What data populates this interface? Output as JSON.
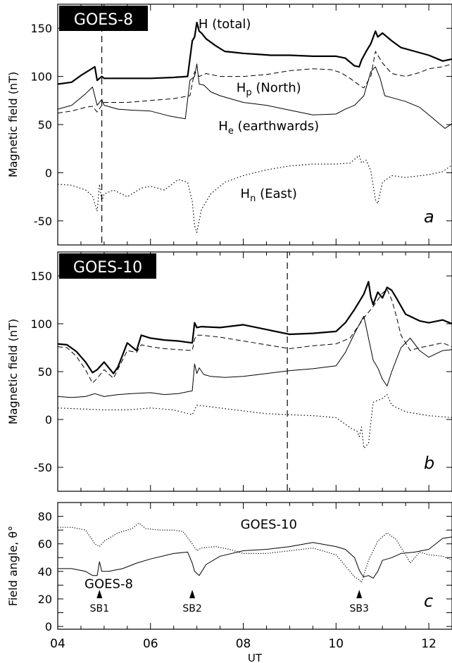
{
  "chart_data": [
    {
      "type": "line",
      "panel_label": "a",
      "badge": "GOES-8",
      "ylabel": "Magnetic field (nT)",
      "xlabel": "",
      "xlim": [
        4,
        12.5
      ],
      "ylim": [
        -75,
        175
      ],
      "yticks": [
        -50,
        0,
        50,
        100,
        150
      ],
      "xticks": [
        4,
        6,
        8,
        10,
        12
      ],
      "xtick_labels": [],
      "vline_x": 4.95,
      "series": [
        {
          "name": "H (total)",
          "name_base": "H",
          "name_sub": "",
          "name_suffix": " (total)",
          "style": "thick",
          "label_x": 7.6,
          "label_y": 150,
          "x": [
            4.0,
            4.3,
            4.5,
            4.7,
            4.8,
            4.85,
            4.95,
            5.0,
            5.5,
            6.0,
            6.5,
            6.8,
            6.9,
            6.95,
            7.0,
            7.05,
            7.1,
            7.2,
            7.4,
            7.6,
            7.8,
            8.0,
            8.3,
            8.6,
            9.0,
            9.5,
            10.0,
            10.2,
            10.4,
            10.5,
            10.55,
            10.65,
            10.75,
            10.85,
            10.9,
            11.0,
            11.2,
            11.4,
            11.7,
            12.0,
            12.3,
            12.5
          ],
          "y": [
            92,
            94,
            101,
            107,
            110,
            96,
            100,
            98,
            98,
            98,
            99,
            100,
            137,
            141,
            156,
            147,
            145,
            139,
            132,
            126,
            125,
            124,
            123,
            122,
            122,
            121,
            121,
            119,
            111,
            110,
            117,
            126,
            134,
            147,
            141,
            145,
            137,
            130,
            126,
            122,
            116,
            118
          ]
        },
        {
          "name": "Hp (North)",
          "name_base": "H",
          "name_sub": "p",
          "name_suffix": " (North)",
          "style": "dashed",
          "label_x": 8.55,
          "label_y": 84,
          "x": [
            4.0,
            4.3,
            4.6,
            4.75,
            4.85,
            4.95,
            5.0,
            5.5,
            6.0,
            6.5,
            6.85,
            6.95,
            7.05,
            7.2,
            7.5,
            8.0,
            8.5,
            9.0,
            9.5,
            9.9,
            10.1,
            10.3,
            10.5,
            10.6,
            10.75,
            10.85,
            11.0,
            11.2,
            11.5,
            11.8,
            12.0,
            12.3,
            12.5
          ],
          "y": [
            62,
            64,
            68,
            69,
            63,
            70,
            73,
            73,
            75,
            77,
            80,
            105,
            100,
            103,
            100,
            100,
            102,
            106,
            108,
            107,
            104,
            98,
            91,
            88,
            100,
            126,
            114,
            103,
            100,
            104,
            108,
            110,
            113
          ]
        },
        {
          "name": "He (earthwards)",
          "name_base": "H",
          "name_sub": "e",
          "name_suffix": " (earthwards)",
          "style": "thin",
          "label_x": 8.55,
          "label_y": 44,
          "x": [
            4.0,
            4.3,
            4.6,
            4.75,
            4.85,
            4.95,
            5.0,
            5.3,
            5.6,
            6.0,
            6.4,
            6.75,
            6.85,
            6.95,
            7.0,
            7.05,
            7.15,
            7.3,
            7.5,
            8.0,
            8.5,
            9.0,
            9.5,
            10.0,
            10.2,
            10.4,
            10.6,
            10.75,
            10.85,
            10.95,
            11.05,
            11.2,
            11.5,
            11.8,
            12.0,
            12.2,
            12.35,
            12.5
          ],
          "y": [
            66,
            70,
            82,
            89,
            70,
            76,
            70,
            66,
            65,
            64,
            59,
            56,
            96,
            100,
            113,
            92,
            91,
            84,
            80,
            73,
            70,
            65,
            60,
            61,
            66,
            70,
            80,
            105,
            110,
            98,
            80,
            78,
            74,
            68,
            60,
            52,
            46,
            51
          ]
        },
        {
          "name": "Hn (East)",
          "name_base": "H",
          "name_sub": "n",
          "name_suffix": " (East)",
          "style": "dotted",
          "label_x": 8.55,
          "label_y": -26,
          "x": [
            4.0,
            4.3,
            4.6,
            4.75,
            4.85,
            4.9,
            4.95,
            5.0,
            5.2,
            5.5,
            5.8,
            6.0,
            6.3,
            6.6,
            6.8,
            6.9,
            6.95,
            7.0,
            7.1,
            7.3,
            7.6,
            8.0,
            8.5,
            9.0,
            9.5,
            10.0,
            10.3,
            10.5,
            10.55,
            10.65,
            10.75,
            10.85,
            10.9,
            11.0,
            11.2,
            11.5,
            12.0,
            12.3,
            12.5
          ],
          "y": [
            -12,
            -13,
            -18,
            -24,
            -40,
            -12,
            -30,
            -22,
            -18,
            -25,
            -16,
            -14,
            -18,
            -7,
            -10,
            -30,
            -55,
            -62,
            -38,
            -22,
            -10,
            -3,
            3,
            7,
            9,
            9,
            10,
            18,
            10,
            13,
            2,
            -28,
            -32,
            -10,
            -3,
            -5,
            -2,
            1,
            8
          ]
        }
      ]
    },
    {
      "type": "line",
      "panel_label": "b",
      "badge": "GOES-10",
      "ylabel": "Magnetic field (nT)",
      "xlabel": "",
      "xlim": [
        4,
        12.5
      ],
      "ylim": [
        -75,
        175
      ],
      "yticks": [
        -50,
        0,
        50,
        100,
        150
      ],
      "xticks": [
        4,
        6,
        8,
        10,
        12
      ],
      "xtick_labels": [],
      "vline_x": 8.95,
      "series": [
        {
          "name": "",
          "style": "thick",
          "x": [
            4.0,
            4.2,
            4.4,
            4.6,
            4.75,
            4.85,
            5.0,
            5.2,
            5.3,
            5.5,
            5.7,
            5.8,
            6.0,
            6.3,
            6.6,
            6.9,
            6.95,
            7.0,
            7.1,
            7.5,
            8.0,
            8.5,
            9.0,
            9.5,
            10.0,
            10.2,
            10.4,
            10.6,
            10.7,
            10.75,
            10.8,
            10.9,
            11.0,
            11.1,
            11.2,
            11.3,
            11.5,
            11.8,
            12.0,
            12.3,
            12.5
          ],
          "y": [
            79,
            78,
            71,
            60,
            49,
            52,
            60,
            48,
            55,
            80,
            72,
            88,
            85,
            83,
            82,
            80,
            101,
            96,
            97,
            96,
            99,
            94,
            89,
            90,
            92,
            101,
            115,
            131,
            144,
            128,
            120,
            133,
            127,
            138,
            135,
            127,
            110,
            103,
            101,
            104,
            100
          ]
        },
        {
          "name": "",
          "style": "dashed",
          "x": [
            4.0,
            4.2,
            4.4,
            4.6,
            4.75,
            4.85,
            5.0,
            5.2,
            5.5,
            5.7,
            5.8,
            6.0,
            6.3,
            6.6,
            6.9,
            6.95,
            7.0,
            7.1,
            7.5,
            8.0,
            8.5,
            9.0,
            9.5,
            10.0,
            10.3,
            10.6,
            10.8,
            11.0,
            11.1,
            11.2,
            11.3,
            11.4,
            11.6,
            11.8,
            12.0,
            12.3,
            12.5
          ],
          "y": [
            76,
            75,
            66,
            52,
            38,
            43,
            52,
            43,
            72,
            70,
            78,
            76,
            74,
            73,
            72,
            84,
            88,
            88,
            86,
            82,
            78,
            74,
            77,
            79,
            85,
            106,
            118,
            132,
            136,
            125,
            108,
            88,
            72,
            75,
            77,
            80,
            76
          ]
        },
        {
          "name": "",
          "style": "thin",
          "x": [
            4.0,
            4.3,
            4.6,
            4.8,
            5.0,
            5.3,
            5.6,
            6.0,
            6.3,
            6.6,
            6.9,
            6.95,
            7.0,
            7.05,
            7.15,
            7.3,
            7.6,
            8.0,
            8.5,
            9.0,
            9.5,
            10.0,
            10.2,
            10.4,
            10.6,
            10.8,
            10.9,
            11.0,
            11.1,
            11.2,
            11.4,
            11.6,
            11.8,
            12.0,
            12.3,
            12.5
          ],
          "y": [
            24,
            23,
            24,
            27,
            24,
            26,
            27,
            28,
            26,
            27,
            30,
            58,
            48,
            54,
            47,
            45,
            44,
            45,
            48,
            51,
            53,
            56,
            70,
            90,
            108,
            62,
            54,
            42,
            35,
            50,
            75,
            85,
            72,
            65,
            72,
            73
          ]
        },
        {
          "name": "",
          "style": "dotted",
          "x": [
            4.0,
            4.5,
            5.0,
            5.5,
            6.0,
            6.5,
            6.9,
            7.0,
            7.5,
            8.0,
            8.5,
            9.0,
            9.5,
            10.0,
            10.2,
            10.35,
            10.45,
            10.5,
            10.55,
            10.6,
            10.7,
            10.8,
            11.0,
            11.1,
            11.2,
            11.5,
            12.0,
            12.5
          ],
          "y": [
            12,
            11,
            10,
            10,
            12,
            10,
            5,
            15,
            12,
            9,
            6,
            5,
            4,
            2,
            -5,
            -10,
            -12,
            -18,
            -8,
            -30,
            -25,
            18,
            22,
            26,
            15,
            8,
            4,
            2
          ]
        }
      ]
    },
    {
      "type": "line",
      "panel_label": "c",
      "badge": "",
      "ylabel": "Field angle, θ°",
      "xlabel": "UT",
      "xlim": [
        4,
        12.5
      ],
      "ylim": [
        -2,
        90
      ],
      "yticks": [
        0,
        10,
        20,
        30,
        40,
        50,
        60,
        70,
        80
      ],
      "ytick_labels": [
        "0",
        "",
        "20",
        "",
        "40",
        "",
        "60",
        "",
        "80"
      ],
      "xticks": [
        4,
        6,
        8,
        10,
        12
      ],
      "xtick_labels": [
        "04",
        "06",
        "08",
        "10",
        "12"
      ],
      "markers": [
        {
          "label": "SB1",
          "x": 4.9,
          "y": 22
        },
        {
          "label": "SB2",
          "x": 6.9,
          "y": 22
        },
        {
          "label": "SB3",
          "x": 10.5,
          "y": 22
        }
      ],
      "series": [
        {
          "name": "GOES-10",
          "style": "dotted-dense",
          "label_x": 8.55,
          "label_y": 71,
          "x": [
            4.0,
            4.3,
            4.6,
            4.8,
            4.9,
            5.0,
            5.3,
            5.6,
            5.75,
            5.9,
            6.2,
            6.5,
            6.7,
            6.9,
            7.0,
            7.1,
            7.4,
            7.7,
            8.0,
            8.5,
            9.0,
            9.5,
            10.0,
            10.2,
            10.4,
            10.5,
            10.55,
            10.7,
            10.9,
            11.1,
            11.3,
            11.5,
            11.6,
            11.8,
            12.0,
            12.3,
            12.5
          ],
          "y": [
            72,
            72,
            70,
            60,
            58,
            62,
            68,
            71,
            75,
            71,
            70,
            70,
            69,
            60,
            55,
            57,
            58,
            56,
            53,
            53,
            55,
            57,
            52,
            44,
            36,
            34,
            32,
            48,
            62,
            68,
            63,
            52,
            46,
            54,
            52,
            51,
            48
          ]
        },
        {
          "name": "GOES-8",
          "style": "thin",
          "label_x": 5.1,
          "label_y": 28,
          "x": [
            4.0,
            4.3,
            4.6,
            4.75,
            4.85,
            4.9,
            4.95,
            5.1,
            5.4,
            5.7,
            6.0,
            6.5,
            6.8,
            6.9,
            6.95,
            7.05,
            7.2,
            7.5,
            8.0,
            8.5,
            9.0,
            9.5,
            10.0,
            10.2,
            10.4,
            10.5,
            10.55,
            10.6,
            10.7,
            10.8,
            10.9,
            11.0,
            11.2,
            11.4,
            11.7,
            12.0,
            12.3,
            12.5
          ],
          "y": [
            42,
            42,
            40,
            37,
            37,
            47,
            40,
            40,
            42,
            46,
            49,
            53,
            54,
            46,
            40,
            37,
            45,
            51,
            55,
            56,
            58,
            61,
            58,
            56,
            50,
            41,
            38,
            36,
            37,
            35,
            40,
            48,
            50,
            53,
            54,
            56,
            64,
            65
          ]
        }
      ]
    }
  ]
}
